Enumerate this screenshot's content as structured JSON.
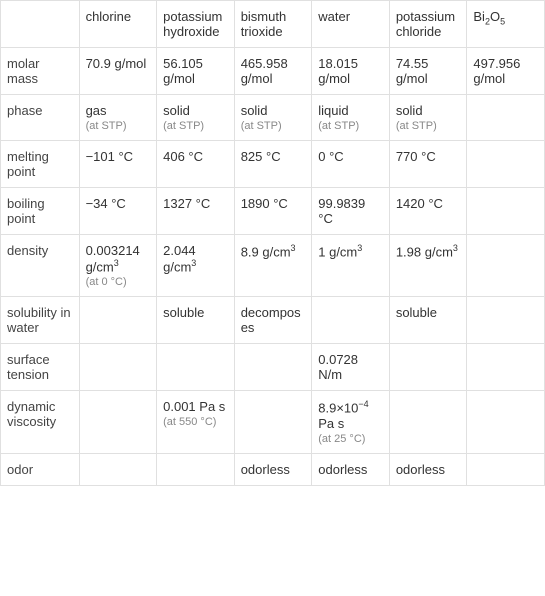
{
  "table": {
    "columns": [
      "",
      "chlorine",
      "potassium hydroxide",
      "bismuth trioxide",
      "water",
      "potassium chloride",
      "Bi₂O₅"
    ],
    "column_headers": {
      "prop": "",
      "chlorine": "chlorine",
      "koh": "potassium hydroxide",
      "bi_trioxide": "bismuth trioxide",
      "water": "water",
      "kcl": "potassium chloride",
      "bi2o5": "Bi"
    },
    "bi2o5_sub1": "2",
    "bi2o5_mid": "O",
    "bi2o5_sub2": "5",
    "rows": {
      "molar_mass": {
        "label": "molar mass",
        "chlorine": "70.9 g/mol",
        "koh": "56.105 g/mol",
        "bi_trioxide": "465.958 g/mol",
        "water": "18.015 g/mol",
        "kcl": "74.55 g/mol",
        "bi2o5": "497.956 g/mol"
      },
      "phase": {
        "label": "phase",
        "chlorine": "gas",
        "chlorine_note": "(at STP)",
        "koh": "solid",
        "koh_note": "(at STP)",
        "bi_trioxide": "solid",
        "bi_trioxide_note": "(at STP)",
        "water": "liquid",
        "water_note": "(at STP)",
        "kcl": "solid",
        "kcl_note": "(at STP)",
        "bi2o5": ""
      },
      "melting_point": {
        "label": "melting point",
        "chlorine": "−101 °C",
        "koh": "406 °C",
        "bi_trioxide": "825 °C",
        "water": "0 °C",
        "kcl": "770 °C",
        "bi2o5": ""
      },
      "boiling_point": {
        "label": "boiling point",
        "chlorine": "−34 °C",
        "koh": "1327 °C",
        "bi_trioxide": "1890 °C",
        "water": "99.9839 °C",
        "kcl": "1420 °C",
        "bi2o5": ""
      },
      "density": {
        "label": "density",
        "chlorine_pre": "0.003214 g/cm",
        "chlorine_sup": "3",
        "chlorine_note": "(at 0 °C)",
        "koh_pre": "2.044 g/cm",
        "koh_sup": "3",
        "bi_trioxide_pre": "8.9 g/cm",
        "bi_trioxide_sup": "3",
        "water_pre": "1 g/cm",
        "water_sup": "3",
        "kcl_pre": "1.98 g/cm",
        "kcl_sup": "3",
        "bi2o5": ""
      },
      "solubility": {
        "label": "solubility in water",
        "chlorine": "",
        "koh": "soluble",
        "bi_trioxide": "decomposes",
        "water": "",
        "kcl": "soluble",
        "bi2o5": ""
      },
      "surface_tension": {
        "label": "surface tension",
        "chlorine": "",
        "koh": "",
        "bi_trioxide": "",
        "water": "0.0728 N/m",
        "kcl": "",
        "bi2o5": ""
      },
      "dynamic_viscosity": {
        "label": "dynamic viscosity",
        "chlorine": "",
        "koh": "0.001 Pa s",
        "koh_note": "(at 550 °C)",
        "bi_trioxide": "",
        "water_pre": "8.9×10",
        "water_sup": "−4",
        "water_post": " Pa s",
        "water_note": "(at 25 °C)",
        "kcl": "",
        "bi2o5": ""
      },
      "odor": {
        "label": "odor",
        "chlorine": "",
        "koh": "",
        "bi_trioxide": "odorless",
        "water": "odorless",
        "kcl": "odorless",
        "bi2o5": ""
      }
    },
    "border_color": "#e0e0e0",
    "text_color": "#333333",
    "note_color": "#888888",
    "font_size": 13,
    "note_font_size": 11
  }
}
